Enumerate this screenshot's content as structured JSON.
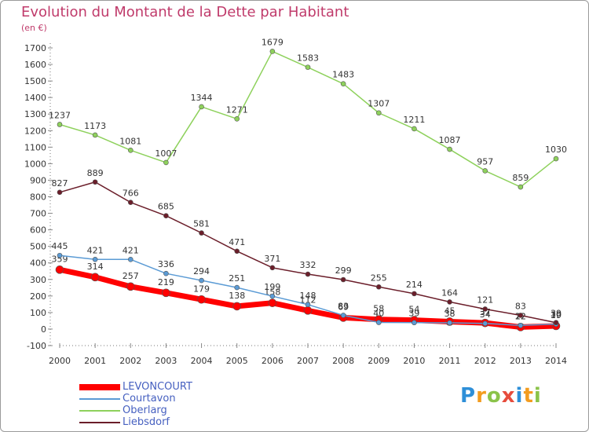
{
  "chart_data": {
    "type": "line",
    "title": "Evolution du Montant de la Dette par Habitant",
    "subtitle": "(en €)",
    "xlabel": "",
    "ylabel": "",
    "x": [
      2000,
      2001,
      2002,
      2003,
      2004,
      2005,
      2006,
      2007,
      2008,
      2009,
      2010,
      2011,
      2012,
      2013,
      2014
    ],
    "ylim": [
      -100,
      1700
    ],
    "yticks": [
      -100,
      0,
      100,
      200,
      300,
      400,
      500,
      600,
      700,
      800,
      900,
      1000,
      1100,
      1200,
      1300,
      1400,
      1500,
      1600,
      1700
    ],
    "grid": false,
    "legend_position": "bottom-left",
    "series": [
      {
        "name": "LEVONCOURT",
        "color": "#ff0000",
        "values": [
          359,
          314,
          257,
          219,
          179,
          138,
          158,
          112,
          69,
          58,
          54,
          45,
          37,
          12,
          19
        ]
      },
      {
        "name": "Courtavon",
        "color": "#5b9bd5",
        "values": [
          445,
          421,
          421,
          336,
          294,
          251,
          199,
          148,
          83,
          40,
          39,
          38,
          34,
          22,
          30
        ]
      },
      {
        "name": "Oberlarg",
        "color": "#8ed15c",
        "values": [
          1237,
          1173,
          1081,
          1007,
          1344,
          1271,
          1679,
          1583,
          1483,
          1307,
          1211,
          1087,
          957,
          859,
          1030
        ]
      },
      {
        "name": "Liebsdorf",
        "color": "#6b1e2a",
        "values": [
          827,
          889,
          766,
          685,
          581,
          471,
          371,
          332,
          299,
          255,
          214,
          164,
          121,
          83,
          39
        ]
      }
    ]
  },
  "logo": {
    "letters": [
      "P",
      "r",
      "o",
      "x",
      "i",
      "t",
      "i"
    ],
    "colors": [
      "#2e8fd8",
      "#f39c1f",
      "#8bc34a",
      "#e74c3c",
      "#2e8fd8",
      "#f39c1f",
      "#8bc34a"
    ]
  }
}
